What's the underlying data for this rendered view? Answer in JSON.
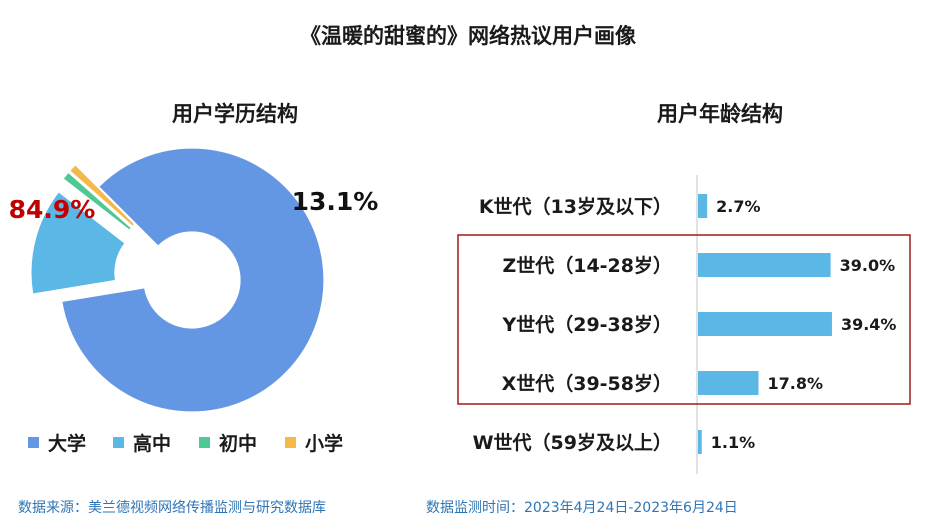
{
  "title": "《温暖的甜蜜的》网络热议用户画像",
  "colors": {
    "university": "#6497e3",
    "high_school": "#5ab7e6",
    "junior_high": "#4fc894",
    "primary": "#f5b94a",
    "bar": "#5ab7e6",
    "highlight_box": "#a52a2a",
    "big_label": "#c00000"
  },
  "chart_data": [
    {
      "type": "pie",
      "title": "用户学历结构",
      "series": [
        {
          "name": "大学",
          "value": 84.9,
          "color": "#6497e3"
        },
        {
          "name": "高中",
          "value": 13.1,
          "color": "#5ab7e6"
        },
        {
          "name": "初中",
          "value": 1.0,
          "color": "#4fc894"
        },
        {
          "name": "小学",
          "value": 1.0,
          "color": "#f5b94a"
        }
      ],
      "labels": [
        {
          "for": "大学",
          "text": "84.9%"
        },
        {
          "for": "高中",
          "text": "13.1%"
        }
      ],
      "legend": {
        "placement": "bottom",
        "entries": [
          "大学",
          "高中",
          "初中",
          "小学"
        ]
      }
    },
    {
      "type": "bar",
      "orientation": "horizontal",
      "title": "用户年龄结构",
      "categories": [
        "K世代（13岁及以下）",
        "Z世代（14-28岁）",
        "Y世代（29-38岁）",
        "X世代（39-58岁）",
        "W世代（59岁及以上）"
      ],
      "values": [
        2.7,
        39.0,
        39.4,
        17.8,
        1.1
      ],
      "value_labels": [
        "2.7%",
        "39.0%",
        "39.4%",
        "17.8%",
        "1.1%"
      ],
      "xlim": [
        0,
        40
      ],
      "highlighted": [
        "Z世代（14-28岁）",
        "Y世代（29-38岁）",
        "X世代（39-58岁）"
      ]
    }
  ],
  "footer": {
    "source": "数据来源：美兰德视频网络传播监测与研究数据库",
    "period": "数据监测时间：2023年4月24日-2023年6月24日"
  }
}
